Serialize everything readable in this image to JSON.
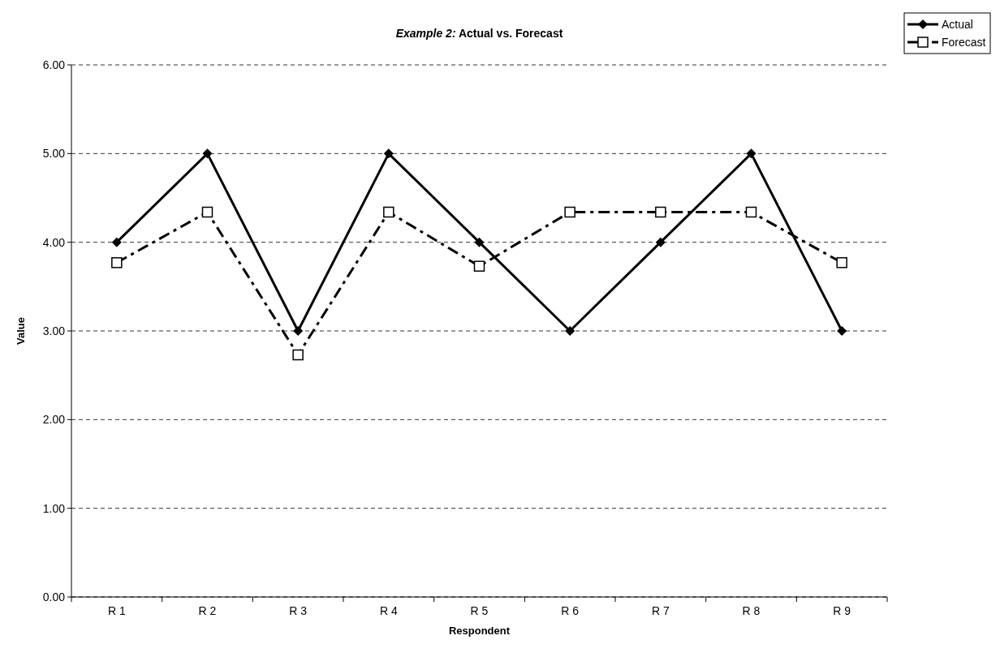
{
  "chart_data": {
    "type": "line",
    "title": "Example 2: Actual vs. Forecast",
    "xlabel": "Respondent",
    "ylabel": "Value",
    "categories": [
      "R 1",
      "R 2",
      "R 3",
      "R 4",
      "R 5",
      "R 6",
      "R 7",
      "R 8",
      "R 9"
    ],
    "series": [
      {
        "name": "Actual",
        "color": "#000000",
        "marker": "diamond",
        "line_style": "solid",
        "values": [
          4,
          5,
          3,
          5,
          4,
          3,
          4,
          5,
          3
        ]
      },
      {
        "name": "Forecast",
        "color": "#000000",
        "marker": "square",
        "line_style": "dashed",
        "values": [
          3.77,
          4.34,
          2.73,
          4.34,
          3.73,
          4.34,
          4.34,
          4.34,
          3.77
        ]
      }
    ],
    "ylim": [
      0,
      6
    ],
    "yticks": [
      {
        "value": 0,
        "label": "0.00"
      },
      {
        "value": 1,
        "label": "1.00"
      },
      {
        "value": 2,
        "label": "2.00"
      },
      {
        "value": 3,
        "label": "3.00"
      },
      {
        "value": 4,
        "label": "4.00"
      },
      {
        "value": 5,
        "label": "5.00"
      },
      {
        "value": 6,
        "label": "6.00"
      }
    ],
    "grid": "y",
    "legend": "top right"
  }
}
